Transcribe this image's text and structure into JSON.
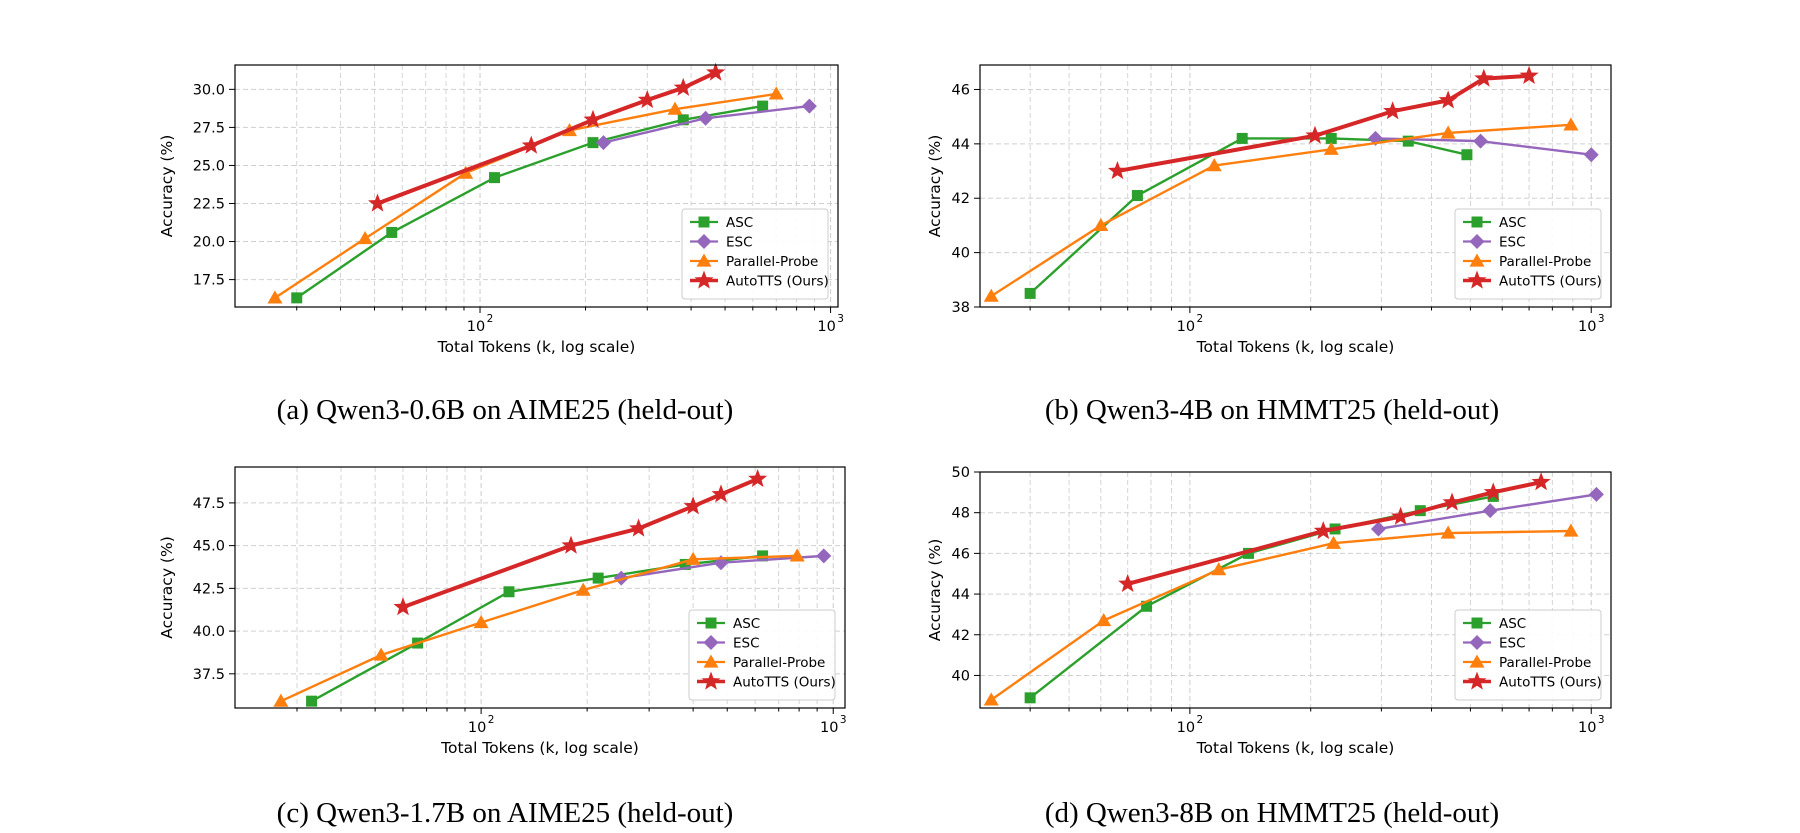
{
  "colors": {
    "ASC": "#2ca02c",
    "ESC": "#9467bd",
    "Parallel-Probe": "#ff7f0e",
    "AutoTTS (Ours)": "#d62728",
    "grid": "#d0d0d0"
  },
  "chart_data": [
    {
      "type": "line",
      "caption": "(a) Qwen3-0.6B on AIME25 (held-out)",
      "xlabel": "Total Tokens (k, log scale)",
      "ylabel": "Accuracy (%)",
      "xscale": "log",
      "xlim": [
        20,
        1050
      ],
      "ylim": [
        15.7,
        31.6
      ],
      "yticks": [
        17.5,
        20.0,
        22.5,
        25.0,
        27.5,
        30.0
      ],
      "ytick_labels": [
        "17.5",
        "20.0",
        "22.5",
        "25.0",
        "27.5",
        "30.0"
      ],
      "xticks": [
        100,
        1000
      ],
      "grid": true,
      "legend_position": "lower-right",
      "series": [
        {
          "name": "ASC",
          "marker": "square",
          "x": [
            30,
            56,
            110,
            210,
            380,
            640
          ],
          "y": [
            16.3,
            20.6,
            24.2,
            26.5,
            28.0,
            28.9
          ]
        },
        {
          "name": "ESC",
          "marker": "diamond",
          "x": [
            225,
            440,
            870
          ],
          "y": [
            26.5,
            28.1,
            28.9
          ]
        },
        {
          "name": "Parallel-Probe",
          "marker": "triangle",
          "x": [
            26,
            47,
            91,
            180,
            360,
            700
          ],
          "y": [
            16.3,
            20.2,
            24.5,
            27.3,
            28.7,
            29.7
          ]
        },
        {
          "name": "AutoTTS (Ours)",
          "marker": "star",
          "x": [
            51,
            140,
            210,
            300,
            380,
            470
          ],
          "y": [
            22.5,
            26.3,
            28.0,
            29.3,
            30.1,
            31.1
          ]
        }
      ]
    },
    {
      "type": "line",
      "caption": "(b) Qwen3-4B on HMMT25 (held-out)",
      "xlabel": "Total Tokens (k, log scale)",
      "ylabel": "Accuracy (%)",
      "xscale": "log",
      "xlim": [
        30,
        1120
      ],
      "ylim": [
        38,
        46.9
      ],
      "yticks": [
        38,
        40,
        42,
        44,
        46
      ],
      "ytick_labels": [
        "38",
        "40",
        "42",
        "44",
        "46"
      ],
      "xticks": [
        100,
        1000
      ],
      "grid": true,
      "legend_position": "lower-right",
      "series": [
        {
          "name": "ASC",
          "marker": "square",
          "x": [
            40,
            74,
            135,
            225,
            350,
            490
          ],
          "y": [
            38.5,
            42.1,
            44.2,
            44.2,
            44.1,
            43.6
          ]
        },
        {
          "name": "ESC",
          "marker": "diamond",
          "x": [
            290,
            530,
            1000
          ],
          "y": [
            44.2,
            44.1,
            43.6
          ]
        },
        {
          "name": "Parallel-Probe",
          "marker": "triangle",
          "x": [
            32,
            60,
            115,
            225,
            440,
            890
          ],
          "y": [
            38.4,
            41.0,
            43.2,
            43.8,
            44.4,
            44.7
          ]
        },
        {
          "name": "AutoTTS (Ours)",
          "marker": "star",
          "x": [
            66,
            205,
            320,
            440,
            540,
            700
          ],
          "y": [
            43.0,
            44.3,
            45.2,
            45.6,
            46.4,
            46.5
          ]
        }
      ]
    },
    {
      "type": "line",
      "caption": "(c) Qwen3-1.7B on AIME25 (held-out)",
      "xlabel": "Total Tokens (k, log scale)",
      "ylabel": "Accuracy (%)",
      "xscale": "log",
      "xlim": [
        20,
        1080
      ],
      "ylim": [
        35.5,
        49.6
      ],
      "yticks": [
        37.5,
        40.0,
        42.5,
        45.0,
        47.5
      ],
      "ytick_labels": [
        "37.5",
        "40.0",
        "42.5",
        "45.0",
        "47.5"
      ],
      "xticks": [
        100,
        1000
      ],
      "grid": true,
      "legend_position": "lower-right",
      "series": [
        {
          "name": "ASC",
          "marker": "square",
          "x": [
            33,
            66,
            120,
            215,
            380,
            630
          ],
          "y": [
            35.9,
            39.3,
            42.3,
            43.1,
            43.9,
            44.4
          ]
        },
        {
          "name": "ESC",
          "marker": "diamond",
          "x": [
            250,
            480,
            940
          ],
          "y": [
            43.1,
            44.0,
            44.4
          ]
        },
        {
          "name": "Parallel-Probe",
          "marker": "triangle",
          "x": [
            27,
            52,
            100,
            195,
            400,
            790
          ],
          "y": [
            35.9,
            38.6,
            40.5,
            42.4,
            44.2,
            44.4
          ]
        },
        {
          "name": "AutoTTS (Ours)",
          "marker": "star",
          "x": [
            60,
            180,
            280,
            400,
            480,
            610
          ],
          "y": [
            41.4,
            45.0,
            46.0,
            47.3,
            48.0,
            48.9
          ]
        }
      ]
    },
    {
      "type": "line",
      "caption": "(d) Qwen3-8B on HMMT25 (held-out)",
      "xlabel": "Total Tokens (k, log scale)",
      "ylabel": "Accuracy (%)",
      "xscale": "log",
      "xlim": [
        30,
        1120
      ],
      "ylim": [
        38.4,
        50.0
      ],
      "yticks": [
        40,
        42,
        44,
        46,
        48,
        50
      ],
      "ytick_labels": [
        "40",
        "42",
        "44",
        "46",
        "48",
        "50"
      ],
      "xticks": [
        100,
        1000
      ],
      "grid": true,
      "legend_position": "lower-right",
      "series": [
        {
          "name": "ASC",
          "marker": "square",
          "x": [
            40,
            78,
            140,
            230,
            375,
            570
          ],
          "y": [
            38.9,
            43.4,
            46.0,
            47.2,
            48.1,
            48.8
          ]
        },
        {
          "name": "ESC",
          "marker": "diamond",
          "x": [
            295,
            560,
            1030
          ],
          "y": [
            47.2,
            48.1,
            48.9
          ]
        },
        {
          "name": "Parallel-Probe",
          "marker": "triangle",
          "x": [
            32,
            61,
            118,
            228,
            440,
            890
          ],
          "y": [
            38.8,
            42.7,
            45.2,
            46.5,
            47.0,
            47.1
          ]
        },
        {
          "name": "AutoTTS (Ours)",
          "marker": "star",
          "x": [
            70,
            215,
            335,
            450,
            570,
            750
          ],
          "y": [
            44.5,
            47.1,
            47.8,
            48.5,
            49.0,
            49.5
          ]
        }
      ]
    }
  ]
}
